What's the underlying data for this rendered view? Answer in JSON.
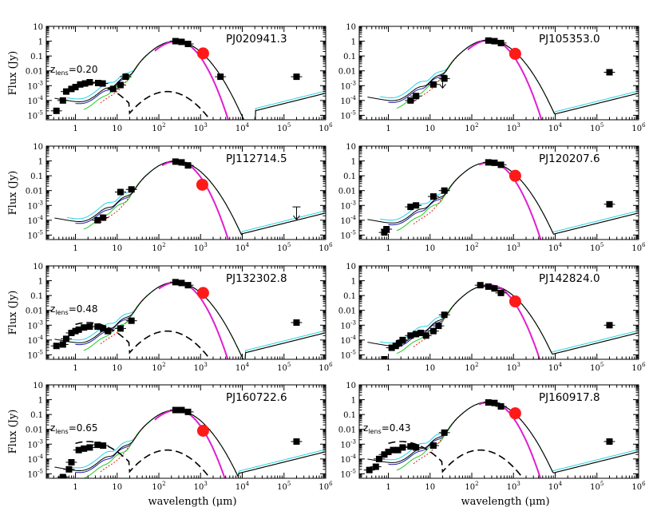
{
  "chart_data": {
    "type": "line",
    "figure": {
      "xlabel_prefix": "wavelength (",
      "xlabel_unit": "μm",
      "xlabel_suffix": ")",
      "ylabel": "Flux (Jy)",
      "xscale": "log",
      "yscale": "log",
      "xlim": [
        0.2,
        1000000
      ],
      "ylim": [
        5e-06,
        10
      ],
      "x_ticks": [
        {
          "value": 1,
          "label": "1"
        },
        {
          "value": 10,
          "label": "10"
        },
        {
          "value": 100,
          "base": "10",
          "exp": "2"
        },
        {
          "value": 1000,
          "base": "10",
          "exp": "3"
        },
        {
          "value": 10000,
          "base": "10",
          "exp": "4"
        },
        {
          "value": 100000,
          "base": "10",
          "exp": "5"
        },
        {
          "value": 1000000,
          "base": "10",
          "exp": "6"
        }
      ],
      "y_ticks": [
        {
          "value": 10,
          "label": "10"
        },
        {
          "value": 1,
          "label": "1"
        },
        {
          "value": 0.1,
          "label": "0.1"
        },
        {
          "value": 0.01,
          "label": "0.01"
        },
        {
          "value": 0.001,
          "base": "10",
          "exp": "-3"
        },
        {
          "value": 0.0001,
          "base": "10",
          "exp": "-4"
        },
        {
          "value": 1e-05,
          "base": "10",
          "exp": "-5"
        }
      ],
      "series_styles": [
        {
          "name": "cyan model",
          "color": "#22d3e6",
          "dash": ""
        },
        {
          "name": "blue model",
          "color": "#1c1ca8",
          "dash": ""
        },
        {
          "name": "green model",
          "color": "#1fcf1f",
          "dash": ""
        },
        {
          "name": "red dotted model",
          "color": "#e01f1f",
          "dash": "2,2"
        },
        {
          "name": "black composite",
          "color": "#000000",
          "dash": ""
        },
        {
          "name": "modified blackbody",
          "color": "#e01fd0",
          "dash": ""
        },
        {
          "name": "lens template",
          "color": "#000000",
          "dash": "9,5"
        }
      ],
      "marker_colors": {
        "photometry": "#000000",
        "highlight": "#ff1a1a"
      },
      "zlens_label": "z",
      "zlens_sub": "lens"
    },
    "panels": [
      {
        "name": "PJ020941.3",
        "zlens": "=0.20",
        "peak": 1.0,
        "cut": 20000,
        "data": [
          [
            0.35,
            2e-05
          ],
          [
            0.5,
            0.0001
          ],
          [
            0.6,
            0.0004
          ],
          [
            0.8,
            0.0006
          ],
          [
            1.0,
            0.0008
          ],
          [
            1.3,
            0.0012
          ],
          [
            1.7,
            0.0014
          ],
          [
            2.2,
            0.0017
          ],
          [
            3.5,
            0.0015
          ],
          [
            4.5,
            0.0014
          ],
          [
            8,
            0.0006
          ],
          [
            12,
            0.0011
          ],
          [
            16,
            0.004
          ],
          [
            250,
            1.0
          ],
          [
            350,
            0.9
          ],
          [
            500,
            0.65
          ],
          [
            3000,
            0.004
          ],
          [
            200000,
            0.004
          ]
        ],
        "upper_limits": [],
        "highlight": [
          1150,
          0.15
        ],
        "lens": true,
        "mbb": [
          80,
          20000
        ]
      },
      {
        "name": "PJ105353.0",
        "zlens": "",
        "peak": 1.2,
        "cut": 10000,
        "data": [
          [
            3.4,
            0.0001
          ],
          [
            4.6,
            0.0002
          ],
          [
            12,
            0.0012
          ],
          [
            22,
            0.003
          ],
          [
            250,
            1.1
          ],
          [
            350,
            1.0
          ],
          [
            500,
            0.75
          ],
          [
            200000,
            0.008
          ]
        ],
        "upper_limits": [
          [
            20,
            0.005
          ]
        ],
        "highlight": [
          1100,
          0.14
        ],
        "lens": false,
        "mbb": [
          80,
          10000
        ]
      },
      {
        "name": "PJ112714.5",
        "zlens": "",
        "peak": 1.0,
        "cut": 10000,
        "data": [
          [
            3.4,
            0.0001
          ],
          [
            4.6,
            0.00015
          ],
          [
            12,
            0.008
          ],
          [
            22,
            0.012
          ],
          [
            250,
            0.9
          ],
          [
            350,
            0.8
          ],
          [
            500,
            0.5
          ]
        ],
        "upper_limits": [
          [
            200000,
            0.0008
          ]
        ],
        "highlight": [
          1100,
          0.025
        ],
        "lens": false,
        "mbb": [
          120,
          10000
        ]
      },
      {
        "name": "PJ120207.6",
        "zlens": "",
        "peak": 0.8,
        "cut": 8000,
        "data": [
          [
            0.8,
            1.5e-05
          ],
          [
            0.9,
            2.5e-05
          ],
          [
            3.4,
            0.0008
          ],
          [
            4.6,
            0.001
          ],
          [
            12,
            0.004
          ],
          [
            22,
            0.01
          ],
          [
            250,
            0.8
          ],
          [
            350,
            0.75
          ],
          [
            500,
            0.55
          ],
          [
            200000,
            0.0012
          ]
        ],
        "upper_limits": [],
        "highlight": [
          1100,
          0.1
        ],
        "lens": false,
        "mbb": [
          150,
          10000
        ]
      },
      {
        "name": "PJ132302.8",
        "zlens": "=0.48",
        "peak": 0.8,
        "cut": 12000,
        "data": [
          [
            0.35,
            4e-05
          ],
          [
            0.5,
            5e-05
          ],
          [
            0.6,
            0.00012
          ],
          [
            0.8,
            0.0003
          ],
          [
            1.0,
            0.0004
          ],
          [
            1.2,
            0.0005
          ],
          [
            1.6,
            0.0007
          ],
          [
            2.2,
            0.0008
          ],
          [
            3.4,
            0.0008
          ],
          [
            4.6,
            0.0006
          ],
          [
            6,
            0.0004
          ],
          [
            12,
            0.0006
          ],
          [
            22,
            0.002
          ],
          [
            250,
            0.8
          ],
          [
            350,
            0.7
          ],
          [
            500,
            0.5
          ],
          [
            200000,
            0.0015
          ]
        ],
        "upper_limits": [],
        "highlight": [
          1150,
          0.15
        ],
        "lens": true,
        "mbb": [
          100,
          12000
        ]
      },
      {
        "name": "PJ142824.0",
        "zlens": "",
        "peak": 0.5,
        "cut": 8000,
        "data": [
          [
            0.8,
            5e-06
          ],
          [
            1.2,
            3e-05
          ],
          [
            1.5,
            4e-05
          ],
          [
            1.8,
            6e-05
          ],
          [
            2.2,
            0.0001
          ],
          [
            3.4,
            0.0002
          ],
          [
            4.6,
            0.00025
          ],
          [
            6,
            0.0003
          ],
          [
            8,
            0.0002
          ],
          [
            12,
            0.0004
          ],
          [
            16,
            0.0009
          ],
          [
            22,
            0.005
          ],
          [
            160,
            0.5
          ],
          [
            250,
            0.4
          ],
          [
            350,
            0.3
          ],
          [
            500,
            0.15
          ],
          [
            200000,
            0.001
          ]
        ],
        "upper_limits": [],
        "highlight": [
          1100,
          0.04
        ],
        "lens": false,
        "mbb": [
          150,
          8000
        ]
      },
      {
        "name": "PJ160722.6",
        "zlens": "=0.65",
        "peak": 0.2,
        "cut": 8000,
        "data": [
          [
            0.5,
            6e-06
          ],
          [
            0.7,
            2e-05
          ],
          [
            0.8,
            6e-05
          ],
          [
            1.2,
            0.0004
          ],
          [
            1.6,
            0.0005
          ],
          [
            2.2,
            0.0006
          ],
          [
            3.4,
            0.0009
          ],
          [
            4.6,
            0.0008
          ],
          [
            250,
            0.2
          ],
          [
            350,
            0.2
          ],
          [
            500,
            0.15
          ],
          [
            200000,
            0.0015
          ]
        ],
        "upper_limits": [],
        "highlight": [
          1150,
          0.008
        ],
        "lens": true,
        "mbb": [
          80,
          8000
        ]
      },
      {
        "name": "PJ160917.8",
        "zlens": "=0.43",
        "peak": 0.7,
        "cut": 8000,
        "data": [
          [
            0.35,
            1.8e-05
          ],
          [
            0.5,
            3e-05
          ],
          [
            0.6,
            0.0001
          ],
          [
            0.8,
            0.0002
          ],
          [
            1.0,
            0.0003
          ],
          [
            1.3,
            0.0004
          ],
          [
            1.7,
            0.0004
          ],
          [
            2.2,
            0.0006
          ],
          [
            3.4,
            0.0007
          ],
          [
            4.6,
            0.0006
          ],
          [
            12,
            0.0008
          ],
          [
            22,
            0.006
          ],
          [
            250,
            0.65
          ],
          [
            350,
            0.6
          ],
          [
            500,
            0.35
          ],
          [
            200000,
            0.0015
          ]
        ],
        "upper_limits": [],
        "highlight": [
          1100,
          0.12
        ],
        "lens": true,
        "mbb": [
          150,
          10000
        ]
      }
    ]
  }
}
